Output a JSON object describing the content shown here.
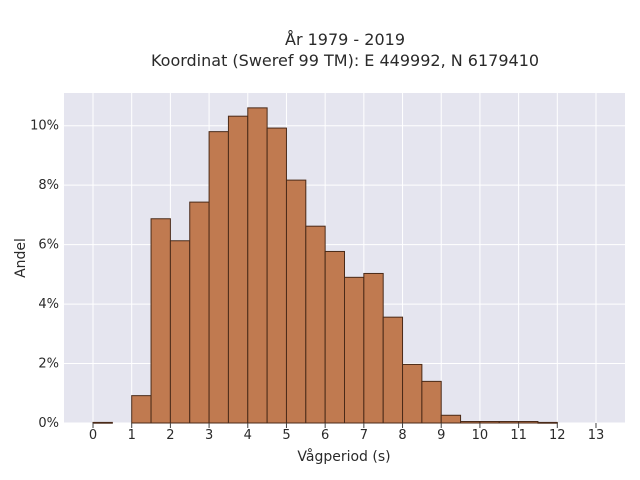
{
  "chart_data": {
    "type": "bar",
    "title_line1": "År 1979 - 2019",
    "title_line2": "Koordinat (Sweref 99 TM): E 449992, N 6179410",
    "xlabel": "Vågperiod (s)",
    "ylabel": "Andel",
    "bar_width": 0.5,
    "bars": [
      {
        "x": 0.0,
        "value": 0.02
      },
      {
        "x": 1.0,
        "value": 0.92
      },
      {
        "x": 1.5,
        "value": 6.87
      },
      {
        "x": 2.0,
        "value": 6.13
      },
      {
        "x": 2.5,
        "value": 7.43
      },
      {
        "x": 3.0,
        "value": 9.8
      },
      {
        "x": 3.5,
        "value": 10.32
      },
      {
        "x": 4.0,
        "value": 10.6
      },
      {
        "x": 4.5,
        "value": 9.92
      },
      {
        "x": 5.0,
        "value": 8.17
      },
      {
        "x": 5.5,
        "value": 6.62
      },
      {
        "x": 6.0,
        "value": 5.77
      },
      {
        "x": 6.5,
        "value": 4.9
      },
      {
        "x": 7.0,
        "value": 5.03
      },
      {
        "x": 7.5,
        "value": 3.56
      },
      {
        "x": 8.0,
        "value": 1.97
      },
      {
        "x": 8.5,
        "value": 1.4
      },
      {
        "x": 9.0,
        "value": 0.26
      },
      {
        "x": 9.5,
        "value": 0.05
      },
      {
        "x": 10.0,
        "value": 0.05
      },
      {
        "x": 10.5,
        "value": 0.05
      },
      {
        "x": 11.0,
        "value": 0.05
      },
      {
        "x": 11.5,
        "value": 0.02
      }
    ],
    "xticks": [
      "0",
      "1",
      "2",
      "3",
      "4",
      "5",
      "6",
      "7",
      "8",
      "9",
      "10",
      "11",
      "12",
      "13"
    ],
    "xtick_values": [
      0,
      1,
      2,
      3,
      4,
      5,
      6,
      7,
      8,
      9,
      10,
      11,
      12,
      13
    ],
    "yticks": [
      "0%",
      "2%",
      "4%",
      "6%",
      "8%",
      "10%"
    ],
    "ytick_values": [
      0,
      2,
      4,
      6,
      8,
      10
    ],
    "xlim": [
      -0.75,
      13.75
    ],
    "ylim": [
      0,
      11.1
    ],
    "bar_color": "#c07a50",
    "bar_edge_color": "#4a2a18",
    "plot_background": "#e5e5ef",
    "grid": true
  }
}
